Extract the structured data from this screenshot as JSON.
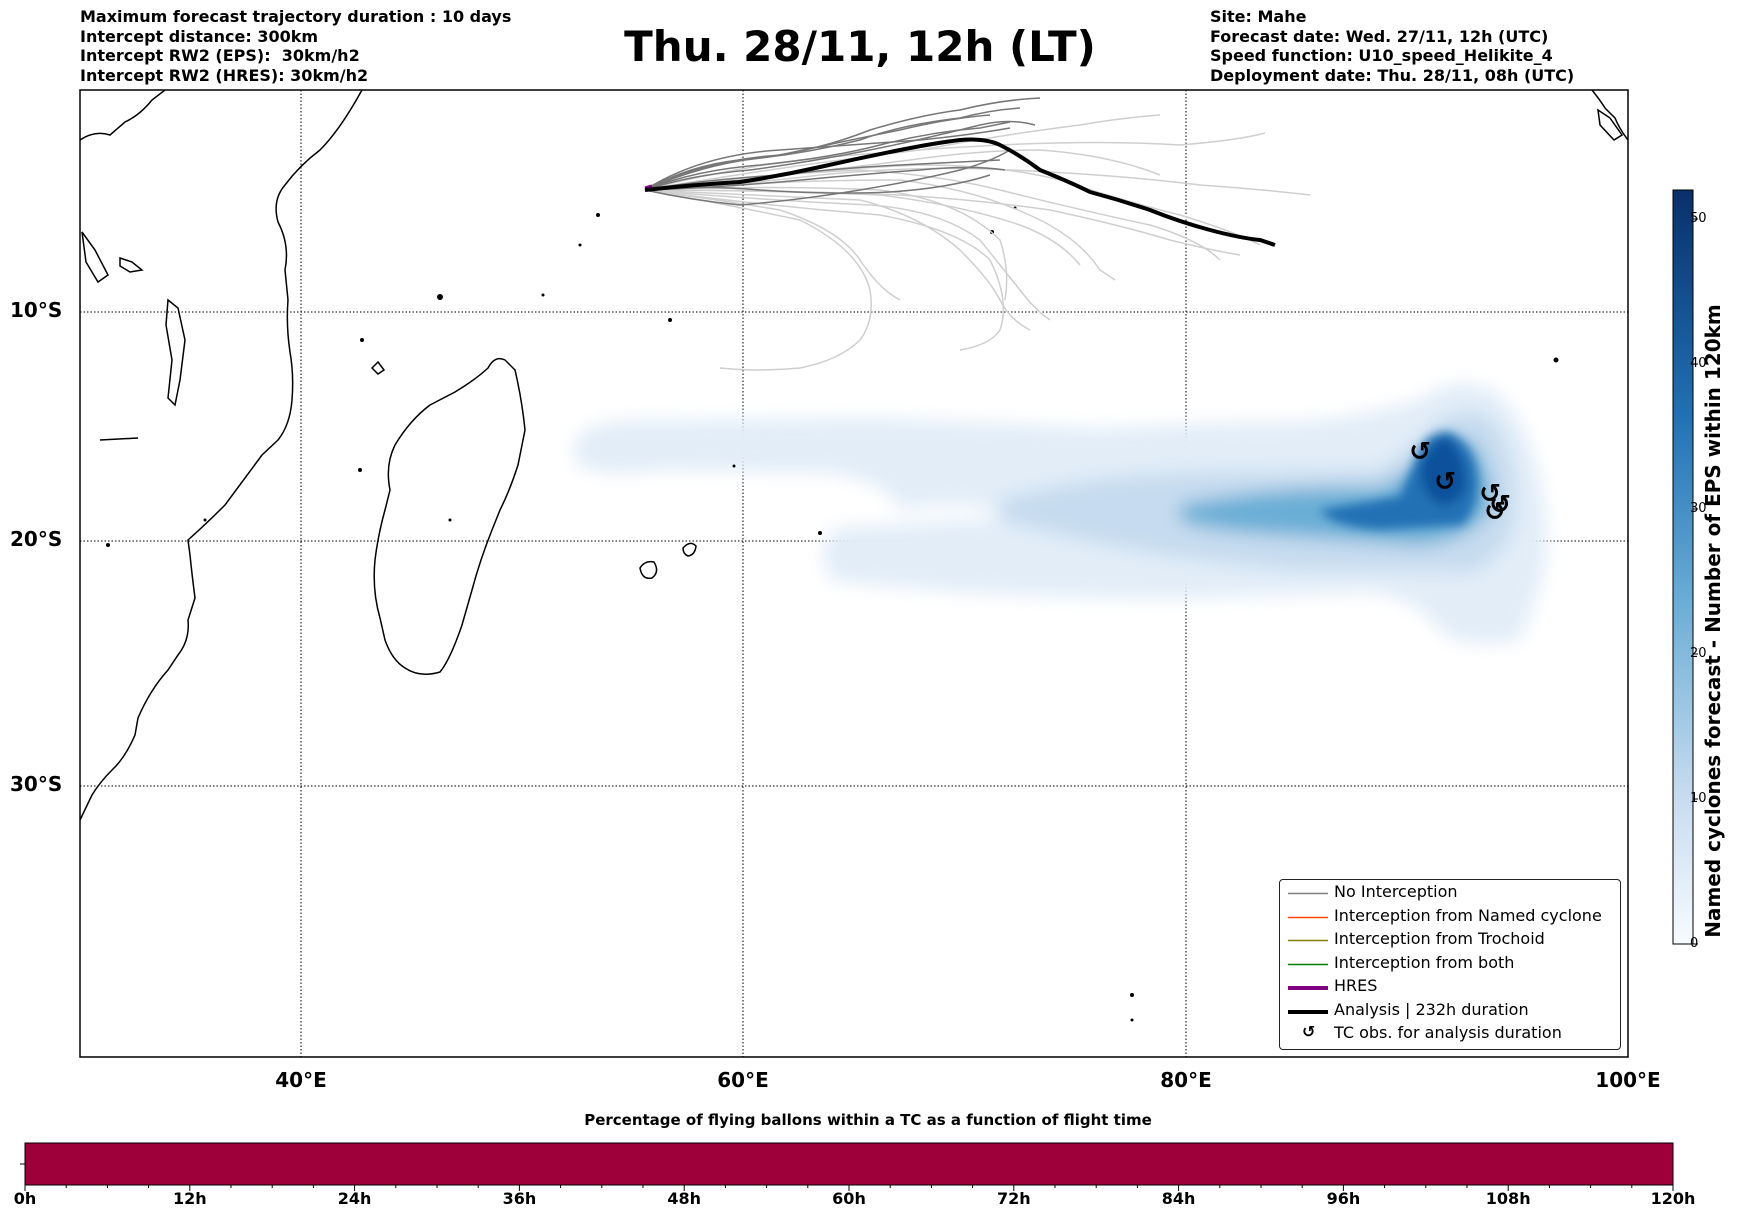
{
  "header": {
    "left": [
      "Maximum forecast trajectory duration : 10 days",
      "Intercept distance: 300km",
      "Intercept RW2 (EPS):  30km/h2",
      "Intercept RW2 (HRES): 30km/h2"
    ],
    "title": "Thu. 28/11, 12h (LT)",
    "right": [
      "Site: Mahe",
      "Forecast date: Wed. 27/11, 12h (UTC)",
      "Speed function: U10_speed_Helikite_4",
      "Deployment date: Thu. 28/11, 08h (UTC)"
    ]
  },
  "map": {
    "lat_labels": [
      "10°S",
      "20°S",
      "30°S"
    ],
    "lon_labels": [
      "40°E",
      "60°E",
      "80°E",
      "100°E"
    ],
    "colors": {
      "analysis": "#000000",
      "no_interception": "#808080",
      "density": "#08519c"
    }
  },
  "legend": {
    "items": [
      {
        "label": "No Interception",
        "color": "#808080"
      },
      {
        "label": "Interception from Named cyclone",
        "color": "#ff4500"
      },
      {
        "label": "Interception from Trochoid",
        "color": "#808000"
      },
      {
        "label": "Interception from both",
        "color": "#008000"
      },
      {
        "label": "HRES",
        "color": "#800080"
      },
      {
        "label": "Analysis | 232h duration",
        "color": "#000000"
      },
      {
        "label": "TC obs. for analysis duration",
        "color": "#000000"
      }
    ],
    "tc_symbol": "↺"
  },
  "colorbar": {
    "label": "Named cyclones forecast - Number of EPS within 120km",
    "ticks": [
      "0",
      "10",
      "20",
      "30",
      "40",
      "50"
    ],
    "min": 0,
    "max": 52
  },
  "bottom_bar": {
    "title": "Percentage of flying ballons within a TC as a function of flight time",
    "ticks": [
      "0h",
      "12h",
      "24h",
      "36h",
      "48h",
      "60h",
      "72h",
      "84h",
      "96h",
      "108h",
      "120h"
    ],
    "color": "#9e0039"
  }
}
